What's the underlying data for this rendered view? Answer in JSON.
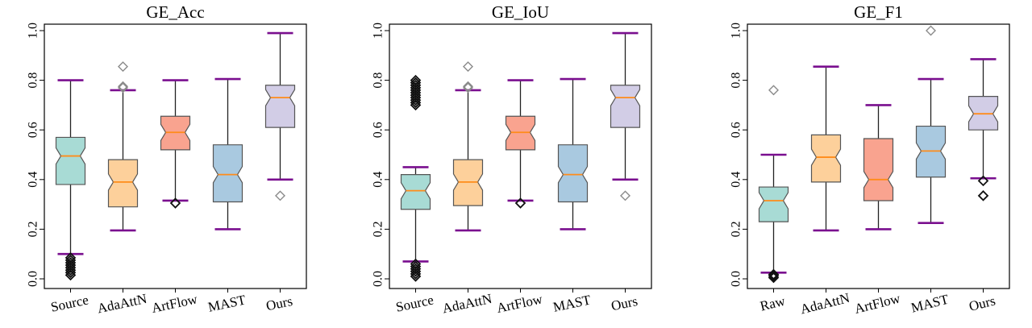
{
  "figure": {
    "chart_data": [
      {
        "type": "box",
        "title": "GE_Acc",
        "ylim": [
          0,
          1.0
        ],
        "yticks": [
          "0.0",
          "0.2",
          "0.4",
          "0.6",
          "0.8",
          "1.0"
        ],
        "categories": [
          "Source",
          "AdaAttN",
          "ArtFlow",
          "MAST",
          "Ours"
        ],
        "boxes": [
          {
            "name": "Source",
            "whisker_low": 0.1,
            "q1": 0.38,
            "median": 0.495,
            "q3": 0.57,
            "whisker_high": 0.8,
            "outliers": [
              0.015,
              0.025,
              0.035,
              0.045,
              0.055,
              0.065,
              0.075,
              0.085
            ],
            "fill": "#a8dbd5",
            "outlier_style": "dark"
          },
          {
            "name": "AdaAttN",
            "whisker_low": 0.195,
            "q1": 0.29,
            "median": 0.39,
            "q3": 0.48,
            "whisker_high": 0.76,
            "outliers": [
              0.77,
              0.775,
              0.855
            ],
            "fill": "#fdd09b",
            "outlier_style": "gray"
          },
          {
            "name": "ArtFlow",
            "whisker_low": 0.315,
            "q1": 0.52,
            "median": 0.59,
            "q3": 0.655,
            "whisker_high": 0.8,
            "outliers": [
              0.305
            ],
            "fill": "#f9a38f",
            "outlier_style": "dark"
          },
          {
            "name": "MAST",
            "whisker_low": 0.2,
            "q1": 0.31,
            "median": 0.42,
            "q3": 0.54,
            "whisker_high": 0.805,
            "outliers": [],
            "fill": "#a9c9e0",
            "outlier_style": "gray"
          },
          {
            "name": "Ours",
            "whisker_low": 0.4,
            "q1": 0.61,
            "median": 0.73,
            "q3": 0.78,
            "whisker_high": 0.99,
            "outliers": [
              0.335
            ],
            "fill": "#d2cde6",
            "outlier_style": "gray"
          }
        ]
      },
      {
        "type": "box",
        "title": "GE_IoU",
        "ylim": [
          0,
          1.0
        ],
        "yticks": [
          "0.0",
          "0.2",
          "0.4",
          "0.6",
          "0.8",
          "1.0"
        ],
        "categories": [
          "Source",
          "AdaAttN",
          "ArtFlow",
          "MAST",
          "Ours"
        ],
        "boxes": [
          {
            "name": "Source",
            "whisker_low": 0.07,
            "q1": 0.28,
            "median": 0.355,
            "q3": 0.42,
            "whisker_high": 0.45,
            "outliers": [
              0.01,
              0.02,
              0.03,
              0.04,
              0.05,
              0.06,
              0.7,
              0.71,
              0.72,
              0.73,
              0.74,
              0.75,
              0.76,
              0.77,
              0.78,
              0.79,
              0.8
            ],
            "fill": "#a8dbd5",
            "outlier_style": "dark"
          },
          {
            "name": "AdaAttN",
            "whisker_low": 0.195,
            "q1": 0.295,
            "median": 0.39,
            "q3": 0.48,
            "whisker_high": 0.76,
            "outliers": [
              0.77,
              0.775,
              0.855
            ],
            "fill": "#fdd09b",
            "outlier_style": "gray"
          },
          {
            "name": "ArtFlow",
            "whisker_low": 0.315,
            "q1": 0.52,
            "median": 0.59,
            "q3": 0.655,
            "whisker_high": 0.8,
            "outliers": [
              0.305
            ],
            "fill": "#f9a38f",
            "outlier_style": "dark"
          },
          {
            "name": "MAST",
            "whisker_low": 0.2,
            "q1": 0.31,
            "median": 0.42,
            "q3": 0.54,
            "whisker_high": 0.805,
            "outliers": [],
            "fill": "#a9c9e0",
            "outlier_style": "gray"
          },
          {
            "name": "Ours",
            "whisker_low": 0.4,
            "q1": 0.61,
            "median": 0.73,
            "q3": 0.78,
            "whisker_high": 0.99,
            "outliers": [
              0.335
            ],
            "fill": "#d2cde6",
            "outlier_style": "gray"
          }
        ]
      },
      {
        "type": "box",
        "title": "GE_F1",
        "ylim": [
          0,
          1.0
        ],
        "yticks": [
          "0.0",
          "0.2",
          "0.4",
          "0.6",
          "0.8",
          "1.0"
        ],
        "categories": [
          "Raw",
          "AdaAttN",
          "ArtFlow",
          "MAST",
          "Ours"
        ],
        "boxes": [
          {
            "name": "Raw",
            "whisker_low": 0.025,
            "q1": 0.23,
            "median": 0.315,
            "q3": 0.37,
            "whisker_high": 0.5,
            "outliers": [
              0.005,
              0.012,
              0.018,
              0.76
            ],
            "fill": "#a8dbd5",
            "outlier_style": "mixed"
          },
          {
            "name": "AdaAttN",
            "whisker_low": 0.195,
            "q1": 0.39,
            "median": 0.49,
            "q3": 0.58,
            "whisker_high": 0.855,
            "outliers": [],
            "fill": "#fdd09b",
            "outlier_style": "gray"
          },
          {
            "name": "ArtFlow",
            "whisker_low": 0.2,
            "q1": 0.315,
            "median": 0.4,
            "q3": 0.565,
            "whisker_high": 0.7,
            "outliers": [],
            "fill": "#f9a38f",
            "outlier_style": "gray"
          },
          {
            "name": "MAST",
            "whisker_low": 0.225,
            "q1": 0.41,
            "median": 0.515,
            "q3": 0.615,
            "whisker_high": 0.805,
            "outliers": [
              1.0
            ],
            "fill": "#a9c9e0",
            "outlier_style": "gray"
          },
          {
            "name": "Ours",
            "whisker_low": 0.405,
            "q1": 0.6,
            "median": 0.665,
            "q3": 0.735,
            "whisker_high": 0.885,
            "outliers": [
              0.395,
              0.335
            ],
            "fill": "#d2cde6",
            "outlier_style": "mixed"
          }
        ]
      }
    ],
    "colors": {
      "whisker_cap": "#7a0f8f",
      "median": "#ff8c1a",
      "box_edge": "#555555",
      "outlier_dark": "#111111",
      "outlier_gray": "#8a8a8a"
    }
  }
}
